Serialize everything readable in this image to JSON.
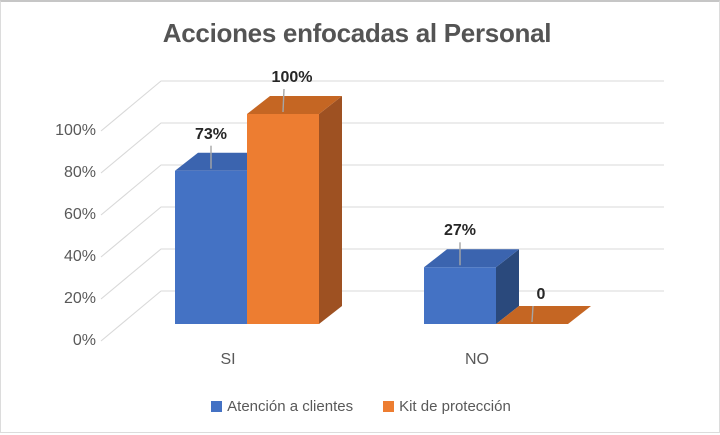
{
  "title": "Acciones enfocadas al Personal",
  "chart_data": {
    "type": "bar",
    "style": "3d-column",
    "title": "Acciones enfocadas al Personal",
    "categories": [
      "SI",
      "NO"
    ],
    "series": [
      {
        "name": "Atención a clientes",
        "color": "#4472C4",
        "color_top": "#3B64AF",
        "color_side": "#2A497C",
        "values": [
          73,
          27
        ],
        "data_labels": [
          "73%",
          "27%"
        ]
      },
      {
        "name": "Kit de protección",
        "color": "#ED7D31",
        "color_top": "#C56623",
        "color_side": "#9E5122",
        "values": [
          100,
          0
        ],
        "data_labels": [
          "100%",
          "0"
        ]
      }
    ],
    "xlabel": "",
    "ylabel": "",
    "ylim": [
      0,
      100
    ],
    "y_ticks": [
      "0%",
      "20%",
      "40%",
      "60%",
      "80%",
      "100%"
    ],
    "grid": true,
    "legend_position": "bottom"
  },
  "colors": {
    "gridline": "#D9D9D9",
    "leader_line": "#A6A6A6",
    "tick_text": "#595959",
    "data_label_text": "#262626",
    "title_text": "#545454",
    "background": "#FFFFFF"
  }
}
